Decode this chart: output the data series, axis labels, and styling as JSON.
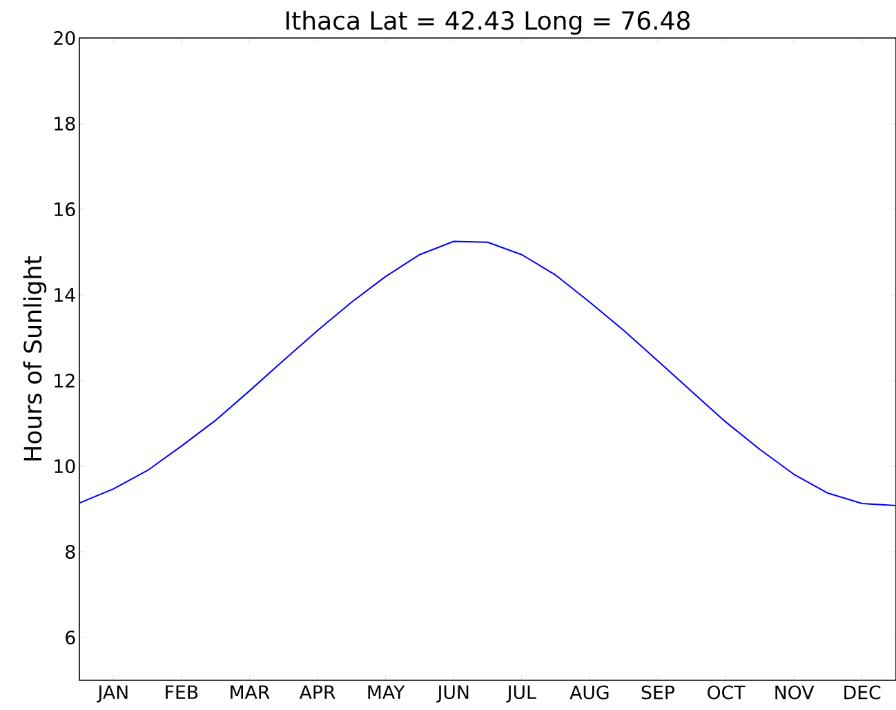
{
  "chart_data": {
    "type": "line",
    "title": "Ithaca     Lat =  42.43  Long =  76.48",
    "ylabel": "Hours of Sunlight",
    "categories": [
      null,
      "JAN",
      null,
      "FEB",
      null,
      "MAR",
      null,
      "APR",
      null,
      "MAY",
      null,
      "JUN",
      null,
      "JUL",
      null,
      "AUG",
      null,
      "SEP",
      null,
      "OCT",
      null,
      "NOV",
      null,
      "DEC",
      null
    ],
    "ylim": [
      5,
      20
    ],
    "yticks": [
      6,
      8,
      10,
      12,
      14,
      16,
      18,
      20
    ],
    "marker": "none",
    "line_style": "solid",
    "series": [
      {
        "color": "#0000ff",
        "values": [
          9.14,
          9.47,
          9.9,
          10.47,
          11.07,
          11.76,
          12.47,
          13.17,
          13.83,
          14.43,
          14.94,
          15.25,
          15.23,
          14.94,
          14.46,
          13.83,
          13.17,
          12.46,
          11.74,
          11.03,
          10.39,
          9.81,
          9.37,
          9.13,
          9.08
        ]
      }
    ]
  }
}
